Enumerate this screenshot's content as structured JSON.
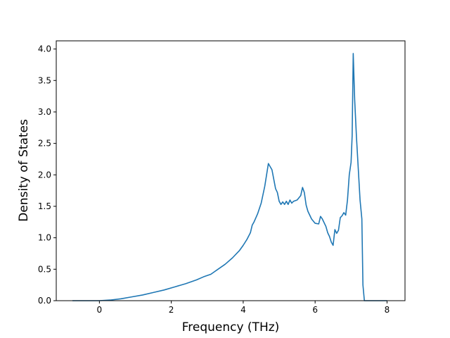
{
  "chart_data": {
    "type": "line",
    "title": "",
    "xlabel": "Frequency (THz)",
    "ylabel": "Density of States",
    "xlim": [
      -1.2,
      8.5
    ],
    "ylim": [
      0,
      4.13
    ],
    "xticks": [
      0,
      2,
      4,
      6,
      8
    ],
    "xtick_labels": [
      "0",
      "2",
      "4",
      "6",
      "8"
    ],
    "yticks": [
      0,
      0.5,
      1.0,
      1.5,
      2.0,
      2.5,
      3.0,
      3.5,
      4.0
    ],
    "ytick_labels": [
      "0.0",
      "0.5",
      "1.0",
      "1.5",
      "2.0",
      "2.5",
      "3.0",
      "3.5",
      "4.0"
    ],
    "grid": false,
    "line_color": "#1f77b4",
    "series": [
      {
        "x": [
          -0.75,
          -0.5,
          0.0,
          0.3,
          0.6,
          0.9,
          1.2,
          1.5,
          1.8,
          2.1,
          2.4,
          2.7,
          2.9,
          3.0,
          3.1,
          3.2,
          3.3,
          3.5,
          3.7,
          3.9,
          4.0,
          4.1,
          4.2,
          4.25,
          4.3,
          4.4,
          4.5,
          4.6,
          4.7,
          4.8,
          4.9,
          4.95,
          5.0,
          5.05,
          5.1,
          5.15,
          5.2,
          5.25,
          5.3,
          5.35,
          5.4,
          5.5,
          5.6,
          5.65,
          5.7,
          5.75,
          5.8,
          5.9,
          6.0,
          6.1,
          6.15,
          6.2,
          6.3,
          6.35,
          6.4,
          6.45,
          6.5,
          6.55,
          6.6,
          6.65,
          6.7,
          6.75,
          6.8,
          6.85,
          6.9,
          6.95,
          7.0,
          7.03,
          7.06,
          7.1,
          7.15,
          7.2,
          7.25,
          7.3,
          7.33,
          7.37,
          7.4,
          8.0
        ],
        "y": [
          0.0,
          0.0,
          0.0,
          0.01,
          0.03,
          0.06,
          0.09,
          0.13,
          0.17,
          0.22,
          0.27,
          0.33,
          0.38,
          0.4,
          0.42,
          0.46,
          0.5,
          0.58,
          0.68,
          0.8,
          0.88,
          0.97,
          1.08,
          1.2,
          1.25,
          1.38,
          1.55,
          1.82,
          2.18,
          2.08,
          1.78,
          1.72,
          1.58,
          1.53,
          1.57,
          1.53,
          1.58,
          1.53,
          1.6,
          1.55,
          1.58,
          1.6,
          1.67,
          1.8,
          1.72,
          1.52,
          1.42,
          1.3,
          1.23,
          1.22,
          1.34,
          1.3,
          1.18,
          1.08,
          1.02,
          0.93,
          0.88,
          1.13,
          1.07,
          1.12,
          1.32,
          1.35,
          1.4,
          1.36,
          1.6,
          2.0,
          2.2,
          2.62,
          3.93,
          3.2,
          2.6,
          2.1,
          1.6,
          1.3,
          0.25,
          0.0,
          0.0,
          0.0
        ]
      }
    ]
  }
}
